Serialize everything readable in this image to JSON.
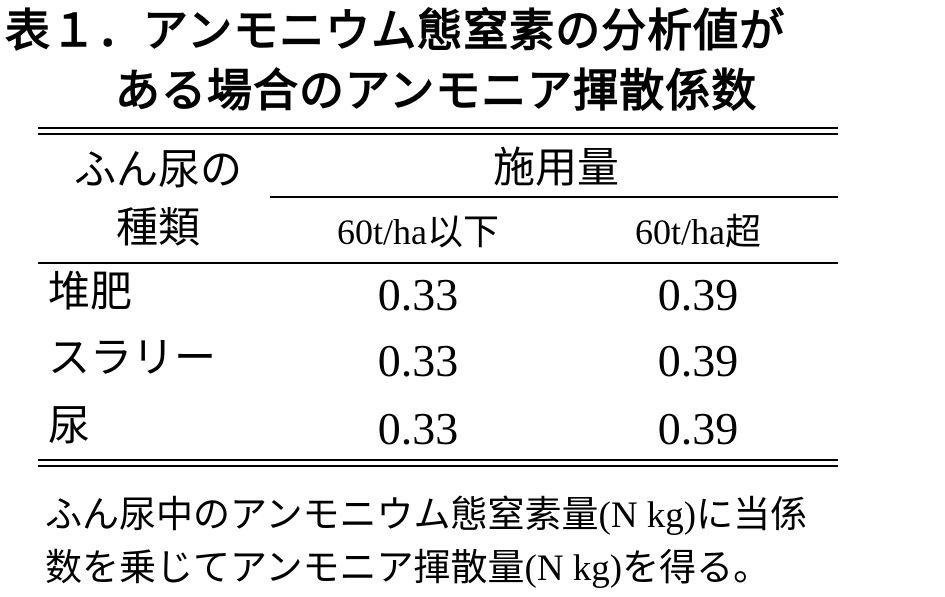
{
  "title": [
    "表１．アンモニウム態窒素の分析値が",
    "ある場合のアンモニア揮散係数"
  ],
  "table": {
    "header": {
      "row_header": [
        "ふん尿の",
        "種類"
      ],
      "group": "施用量",
      "columns": [
        "60t/ha以下",
        "60t/ha超"
      ]
    },
    "rows": [
      [
        "堆肥",
        0.33,
        0.39
      ],
      [
        "スラリー",
        0.33,
        0.39
      ],
      [
        "尿",
        0.33,
        0.39
      ]
    ]
  },
  "note": [
    "ふん尿中のアンモニウム態窒素量(N kg)に当係",
    "数を乗じてアンモニア揮散量(N kg)を得る。"
  ]
}
